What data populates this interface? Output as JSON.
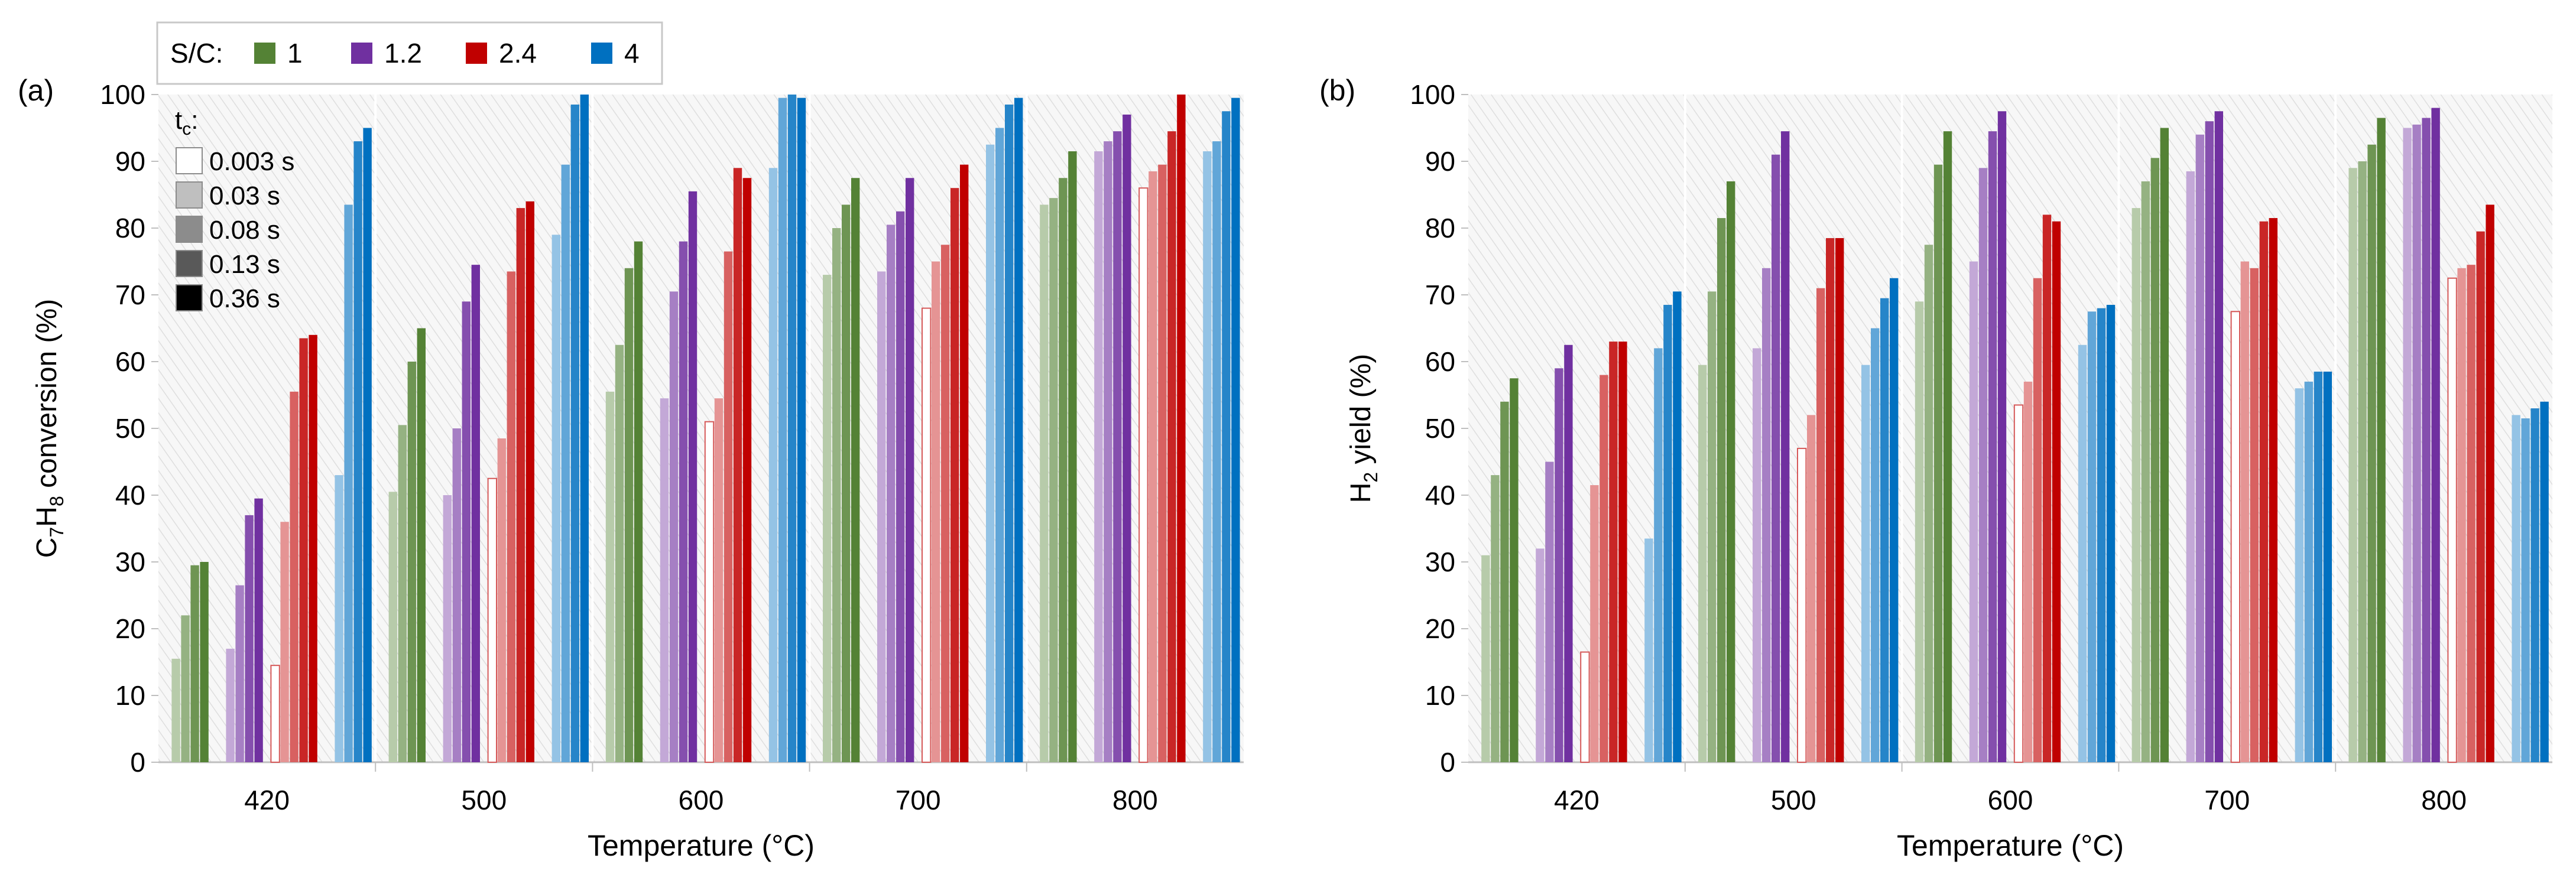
{
  "legend": {
    "title": "S/C:",
    "entries": [
      {
        "label": "1",
        "color": "#548235"
      },
      {
        "label": "1.2",
        "color": "#7030A0"
      },
      {
        "label": "2.4",
        "color": "#C00000"
      },
      {
        "label": "4",
        "color": "#0070C0"
      }
    ],
    "tc_title": "t",
    "tc_title_sub": "c",
    "tc_title_suffix": ":",
    "tc_entries": [
      {
        "label": "0.003 s",
        "fill": "#ffffff"
      },
      {
        "label": "0.03 s",
        "fill": "#bfbfbf"
      },
      {
        "label": "0.08 s",
        "fill": "#8c8c8c"
      },
      {
        "label": "0.13 s",
        "fill": "#595959"
      },
      {
        "label": "0.36 s",
        "fill": "#000000"
      }
    ]
  },
  "chart_data": [
    {
      "type": "bar",
      "panel_label": "(a)",
      "ylabel_parts": [
        "C",
        "7",
        "H",
        "8",
        " conversion (%)"
      ],
      "xlabel": "Temperature (°C)",
      "ylim": [
        0,
        100
      ],
      "yticks": [
        "0",
        "10",
        "20",
        "30",
        "40",
        "50",
        "60",
        "70",
        "80",
        "90",
        "100"
      ],
      "categories": [
        "420",
        "500",
        "600",
        "700",
        "800"
      ],
      "series_order": [
        "1",
        "1.2",
        "2.4",
        "4"
      ],
      "tc_order": [
        "0.003 s",
        "0.03 s",
        "0.08 s",
        "0.13 s",
        "0.36 s"
      ],
      "values": {
        "420": {
          "1": [
            null,
            15.5,
            22.0,
            29.5,
            30.0
          ],
          "1.2": [
            null,
            17.0,
            26.5,
            37.0,
            39.5
          ],
          "2.4": [
            14.5,
            36.0,
            55.5,
            63.5,
            64.0
          ],
          "4": [
            null,
            43.0,
            83.5,
            93.0,
            95.0
          ]
        },
        "500": {
          "1": [
            null,
            40.5,
            50.5,
            60.0,
            65.0
          ],
          "1.2": [
            null,
            40.0,
            50.0,
            69.0,
            74.5
          ],
          "2.4": [
            42.5,
            48.5,
            73.5,
            83.0,
            84.0
          ],
          "4": [
            null,
            79.0,
            89.5,
            98.5,
            100.0
          ]
        },
        "600": {
          "1": [
            null,
            55.5,
            62.5,
            74.0,
            78.0
          ],
          "1.2": [
            null,
            54.5,
            70.5,
            78.0,
            85.5
          ],
          "2.4": [
            51.0,
            54.5,
            76.5,
            89.0,
            87.5
          ],
          "4": [
            null,
            89.0,
            99.5,
            100.0,
            99.5
          ]
        },
        "700": {
          "1": [
            null,
            73.0,
            80.0,
            83.5,
            87.5
          ],
          "1.2": [
            null,
            73.5,
            80.5,
            82.5,
            87.5
          ],
          "2.4": [
            68.0,
            75.0,
            77.5,
            86.0,
            89.5
          ],
          "4": [
            null,
            92.5,
            95.0,
            98.5,
            99.5
          ]
        },
        "800": {
          "1": [
            null,
            83.5,
            84.5,
            87.5,
            91.5
          ],
          "1.2": [
            null,
            91.5,
            93.0,
            94.5,
            97.0
          ],
          "2.4": [
            86.0,
            88.5,
            89.5,
            94.5,
            100.0
          ],
          "4": [
            null,
            91.5,
            93.0,
            97.5,
            99.5
          ]
        }
      }
    },
    {
      "type": "bar",
      "panel_label": "(b)",
      "ylabel_parts": [
        "H",
        "2",
        " yield (%)"
      ],
      "xlabel": "Temperature (°C)",
      "ylim": [
        0,
        100
      ],
      "yticks": [
        "0",
        "10",
        "20",
        "30",
        "40",
        "50",
        "60",
        "70",
        "80",
        "90",
        "100"
      ],
      "categories": [
        "420",
        "500",
        "600",
        "700",
        "800"
      ],
      "series_order": [
        "1",
        "1.2",
        "2.4",
        "4"
      ],
      "tc_order": [
        "0.003 s",
        "0.03 s",
        "0.08 s",
        "0.13 s",
        "0.36 s"
      ],
      "values": {
        "420": {
          "1": [
            null,
            31.0,
            43.0,
            54.0,
            57.5
          ],
          "1.2": [
            null,
            32.0,
            45.0,
            59.0,
            62.5
          ],
          "2.4": [
            16.5,
            41.5,
            58.0,
            63.0,
            63.0
          ],
          "4": [
            null,
            33.5,
            62.0,
            68.5,
            70.5
          ]
        },
        "500": {
          "1": [
            null,
            59.5,
            70.5,
            81.5,
            87.0
          ],
          "1.2": [
            null,
            62.0,
            74.0,
            91.0,
            94.5
          ],
          "2.4": [
            47.0,
            52.0,
            71.0,
            78.5,
            78.5
          ],
          "4": [
            null,
            59.5,
            65.0,
            69.5,
            72.5
          ]
        },
        "600": {
          "1": [
            null,
            69.0,
            77.5,
            89.5,
            94.5
          ],
          "1.2": [
            null,
            75.0,
            89.0,
            94.5,
            97.5
          ],
          "2.4": [
            53.5,
            57.0,
            72.5,
            82.0,
            81.0
          ],
          "4": [
            null,
            62.5,
            67.5,
            68.0,
            68.5
          ]
        },
        "700": {
          "1": [
            null,
            83.0,
            87.0,
            90.5,
            95.0
          ],
          "1.2": [
            null,
            88.5,
            94.0,
            96.0,
            97.5
          ],
          "2.4": [
            67.5,
            75.0,
            74.0,
            81.0,
            81.5
          ],
          "4": [
            null,
            56.0,
            57.0,
            58.5,
            58.5
          ]
        },
        "800": {
          "1": [
            null,
            89.0,
            90.0,
            92.5,
            96.5
          ],
          "1.2": [
            null,
            95.0,
            95.5,
            96.5,
            98.0
          ],
          "2.4": [
            72.5,
            74.0,
            74.5,
            79.5,
            83.5
          ],
          "4": [
            null,
            52.0,
            51.5,
            53.0,
            54.0
          ]
        }
      }
    }
  ]
}
